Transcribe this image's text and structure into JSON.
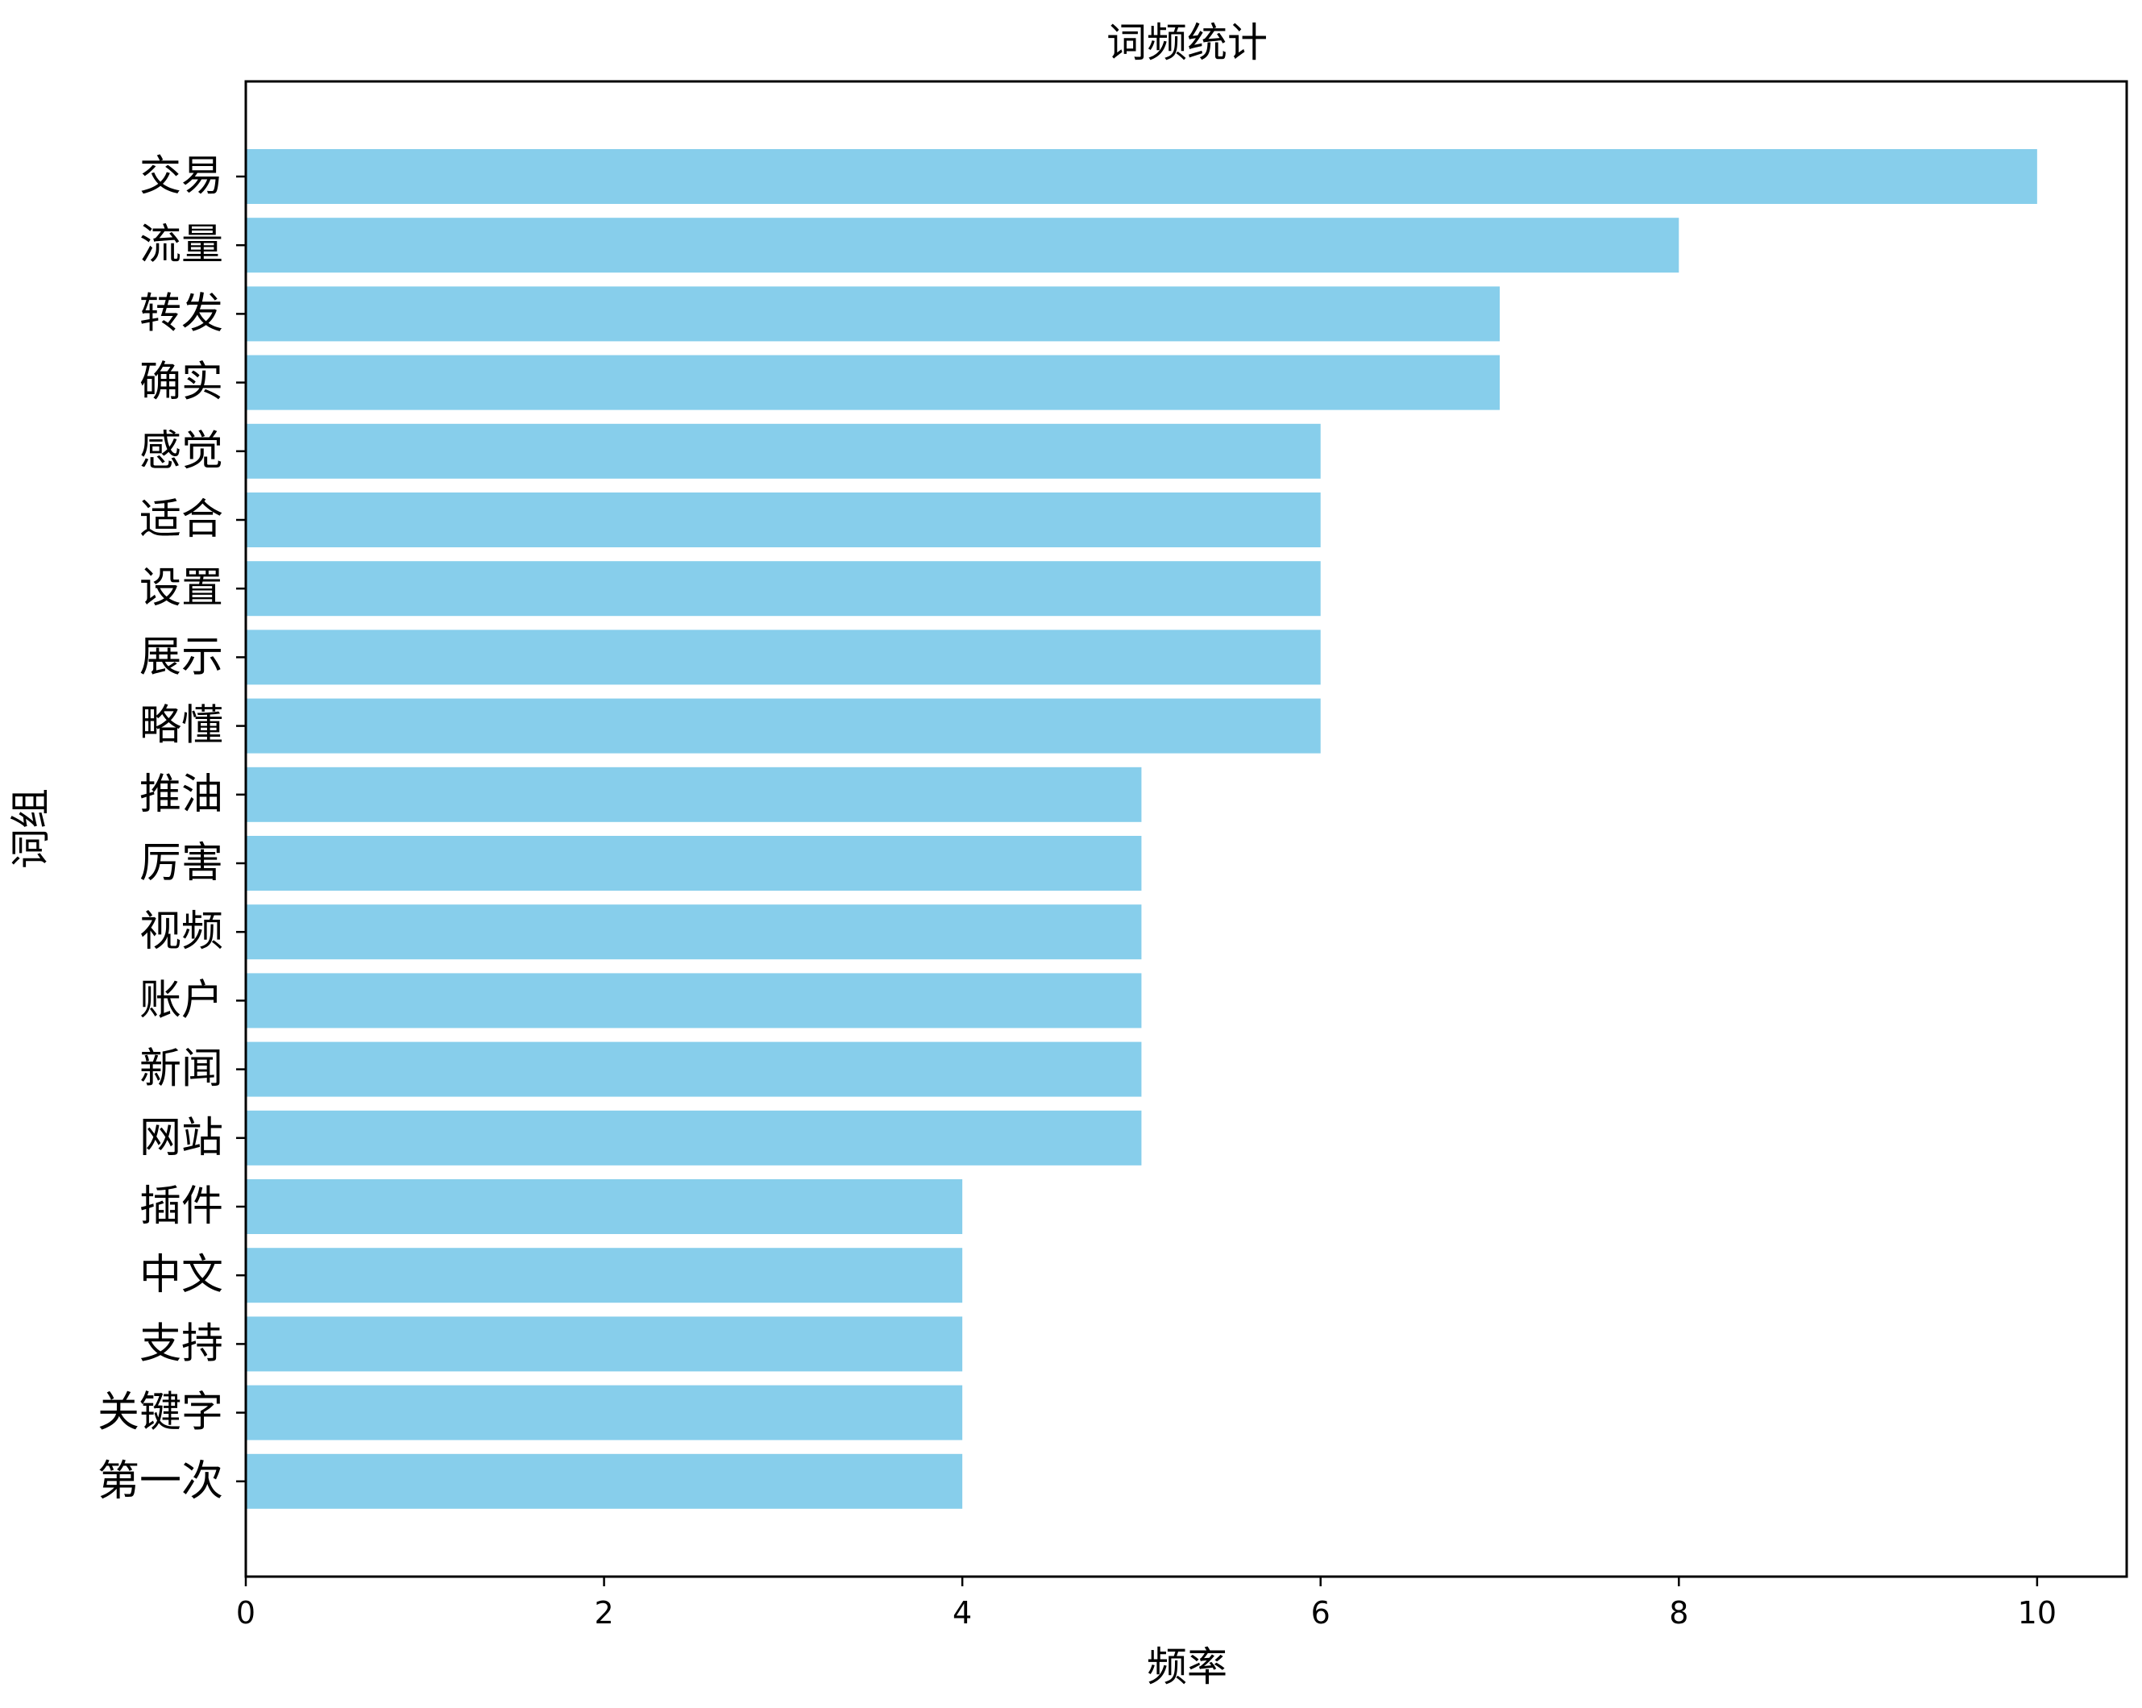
{
  "chart_data": {
    "type": "bar",
    "orientation": "horizontal",
    "title": "词频统计",
    "xlabel": "频率",
    "ylabel": "词组",
    "xlim": [
      0,
      10.5
    ],
    "xticks": [
      0,
      2,
      4,
      6,
      8,
      10
    ],
    "grid": false,
    "bar_color": "#87ceeb",
    "categories": [
      "交易",
      "流量",
      "转发",
      "确实",
      "感觉",
      "适合",
      "设置",
      "展示",
      "略懂",
      "推油",
      "厉害",
      "视频",
      "账户",
      "新闻",
      "网站",
      "插件",
      "中文",
      "支持",
      "关键字",
      "第一次"
    ],
    "values": [
      10,
      8,
      7,
      7,
      6,
      6,
      6,
      6,
      6,
      5,
      5,
      5,
      5,
      5,
      5,
      4,
      4,
      4,
      4,
      4
    ]
  }
}
